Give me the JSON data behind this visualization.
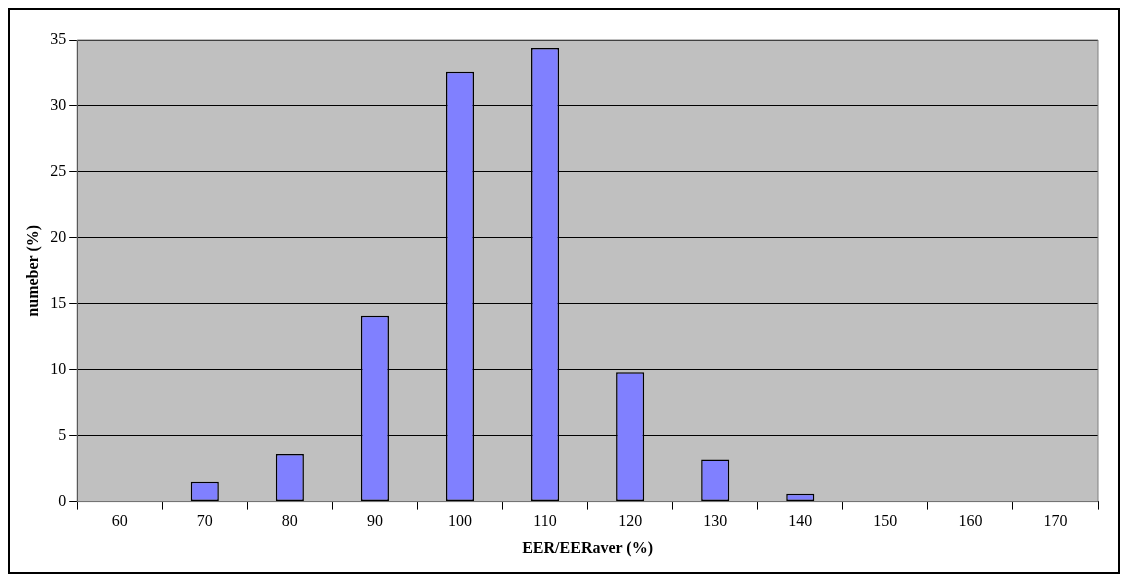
{
  "chart_data": {
    "type": "bar",
    "xlabel": "EER/EERaver (%)",
    "ylabel": "numeber (%)",
    "categories": [
      "60",
      "70",
      "80",
      "90",
      "100",
      "110",
      "120",
      "130",
      "140",
      "150",
      "160",
      "170"
    ],
    "values": [
      0,
      1.5,
      3.6,
      14.1,
      32.6,
      34.4,
      9.8,
      3.2,
      0.6,
      0,
      0,
      0
    ],
    "color": "#8080ff",
    "ylim": [
      0,
      35
    ],
    "yticks": [
      0,
      5,
      10,
      15,
      20,
      25,
      30,
      35
    ],
    "grid": "y",
    "legend": false
  }
}
